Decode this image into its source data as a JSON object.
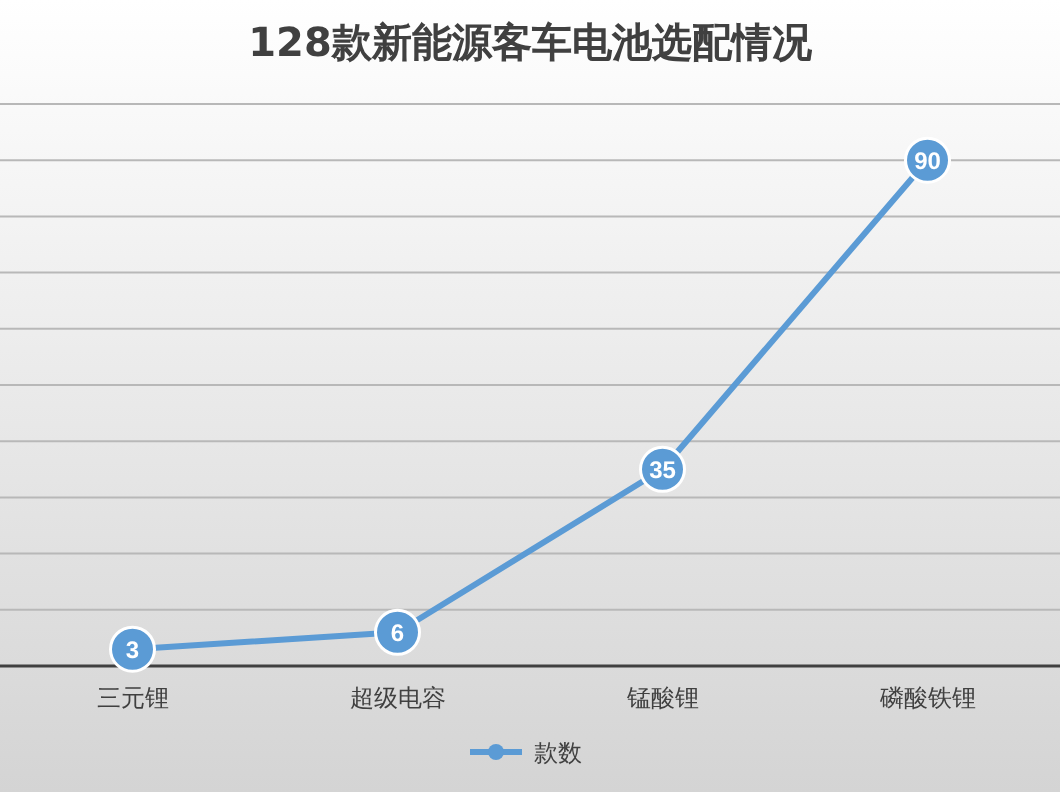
{
  "chart_data": {
    "type": "line",
    "title": "128款新能源客车电池选配情况",
    "categories": [
      "三元锂",
      "超级电容",
      "锰酸锂",
      "磷酸铁锂"
    ],
    "series": [
      {
        "name": "款数",
        "color": "#5b9bd5",
        "values": [
          3,
          6,
          35,
          90
        ]
      }
    ],
    "ylim": [
      0,
      100
    ],
    "yticks": [
      {
        "value": 0,
        "label": null
      },
      {
        "value": 10,
        "label": null
      },
      {
        "value": 20,
        "label": null
      },
      {
        "value": 30,
        "label": null
      },
      {
        "value": 40,
        "label": null
      },
      {
        "value": 50,
        "label": null
      },
      {
        "value": 60,
        "label": null
      },
      {
        "value": 70,
        "label": null
      },
      {
        "value": 80,
        "label": null
      },
      {
        "value": 90,
        "label": null
      },
      {
        "value": 100,
        "label": null
      }
    ],
    "tick_labels": "x",
    "grid": "y",
    "legend": "bottom",
    "marker": "circle",
    "line_style": "solid",
    "data_labels": true
  }
}
